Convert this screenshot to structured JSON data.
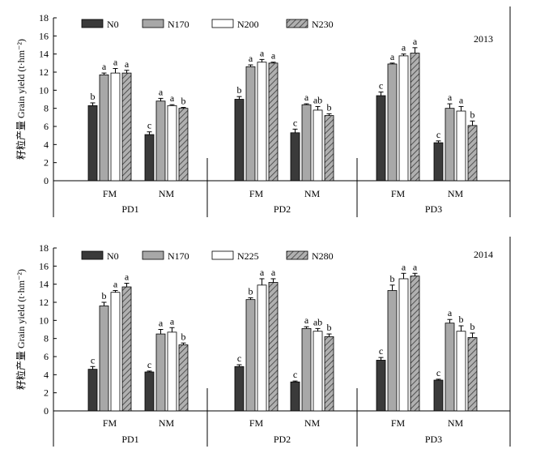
{
  "chart_data": [
    {
      "type": "bar",
      "year": "2013",
      "ylabel": "籽粒产量 Grain yield (t·hm⁻²)",
      "ylim": [
        0,
        18
      ],
      "yticks": [
        0,
        2,
        4,
        6,
        8,
        10,
        12,
        14,
        16,
        18
      ],
      "series": [
        {
          "name": "N0",
          "color": "#3a3a3a",
          "pattern": "solid"
        },
        {
          "name": "N170",
          "color": "#a8a8a8",
          "pattern": "solid"
        },
        {
          "name": "N200",
          "color": "#ffffff",
          "pattern": "solid"
        },
        {
          "name": "N230",
          "color": "#b0b0b0",
          "pattern": "hatch"
        }
      ],
      "periods": [
        {
          "label": "PD1",
          "groups": [
            {
              "label": "FM",
              "values": [
                8.3,
                11.7,
                11.9,
                11.9
              ],
              "errors": [
                0.3,
                0.2,
                0.5,
                0.3
              ],
              "letters": [
                "b",
                "a",
                "a",
                "a"
              ]
            },
            {
              "label": "NM",
              "values": [
                5.1,
                8.8,
                8.3,
                8.0
              ],
              "errors": [
                0.3,
                0.3,
                0.1,
                0.1
              ],
              "letters": [
                "c",
                "a",
                "a",
                "b"
              ]
            }
          ]
        },
        {
          "label": "PD2",
          "groups": [
            {
              "label": "FM",
              "values": [
                9.0,
                12.6,
                13.1,
                13.0
              ],
              "errors": [
                0.3,
                0.2,
                0.3,
                0.1
              ],
              "letters": [
                "b",
                "a",
                "a",
                "a"
              ]
            },
            {
              "label": "NM",
              "values": [
                5.3,
                8.4,
                7.8,
                7.2
              ],
              "errors": [
                0.4,
                0.1,
                0.4,
                0.2
              ],
              "letters": [
                "c",
                "a",
                "ab",
                "b"
              ]
            }
          ]
        },
        {
          "label": "PD3",
          "groups": [
            {
              "label": "FM",
              "values": [
                9.4,
                12.9,
                13.8,
                14.1
              ],
              "errors": [
                0.4,
                0.1,
                0.2,
                0.6
              ],
              "letters": [
                "c",
                "a",
                "a",
                "a"
              ]
            },
            {
              "label": "NM",
              "values": [
                4.2,
                8.0,
                7.7,
                6.1
              ],
              "errors": [
                0.2,
                0.5,
                0.5,
                0.5
              ],
              "letters": [
                "c",
                "a",
                "a",
                "b"
              ]
            }
          ]
        }
      ]
    },
    {
      "type": "bar",
      "year": "2014",
      "ylabel": "籽粒产量 Grain yield (t·hm⁻²)",
      "ylim": [
        0,
        18
      ],
      "yticks": [
        0,
        2,
        4,
        6,
        8,
        10,
        12,
        14,
        16,
        18
      ],
      "series": [
        {
          "name": "N0",
          "color": "#3a3a3a",
          "pattern": "solid"
        },
        {
          "name": "N170",
          "color": "#a8a8a8",
          "pattern": "solid"
        },
        {
          "name": "N225",
          "color": "#ffffff",
          "pattern": "solid"
        },
        {
          "name": "N280",
          "color": "#b0b0b0",
          "pattern": "hatch"
        }
      ],
      "periods": [
        {
          "label": "PD1",
          "groups": [
            {
              "label": "FM",
              "values": [
                4.6,
                11.6,
                13.1,
                13.7
              ],
              "errors": [
                0.3,
                0.4,
                0.2,
                0.4
              ],
              "letters": [
                "c",
                "b",
                "a",
                "a"
              ]
            },
            {
              "label": "NM",
              "values": [
                4.3,
                8.5,
                8.7,
                7.3
              ],
              "errors": [
                0.1,
                0.5,
                0.5,
                0.2
              ],
              "letters": [
                "c",
                "a",
                "a",
                "b"
              ]
            }
          ]
        },
        {
          "label": "PD2",
          "groups": [
            {
              "label": "FM",
              "values": [
                4.9,
                12.3,
                13.9,
                14.2
              ],
              "errors": [
                0.2,
                0.2,
                0.7,
                0.4
              ],
              "letters": [
                "c",
                "b",
                "a",
                "a"
              ]
            },
            {
              "label": "NM",
              "values": [
                3.2,
                9.1,
                8.8,
                8.2
              ],
              "errors": [
                0.1,
                0.2,
                0.3,
                0.3
              ],
              "letters": [
                "c",
                "a",
                "ab",
                "b"
              ]
            }
          ]
        },
        {
          "label": "PD3",
          "groups": [
            {
              "label": "FM",
              "values": [
                5.6,
                13.3,
                14.6,
                14.9
              ],
              "errors": [
                0.3,
                0.6,
                0.6,
                0.3
              ],
              "letters": [
                "c",
                "b",
                "a",
                "a"
              ]
            },
            {
              "label": "NM",
              "values": [
                3.4,
                9.7,
                8.8,
                8.1
              ],
              "errors": [
                0.1,
                0.4,
                0.6,
                0.5
              ],
              "letters": [
                "c",
                "a",
                "b",
                "b"
              ]
            }
          ]
        }
      ]
    }
  ]
}
